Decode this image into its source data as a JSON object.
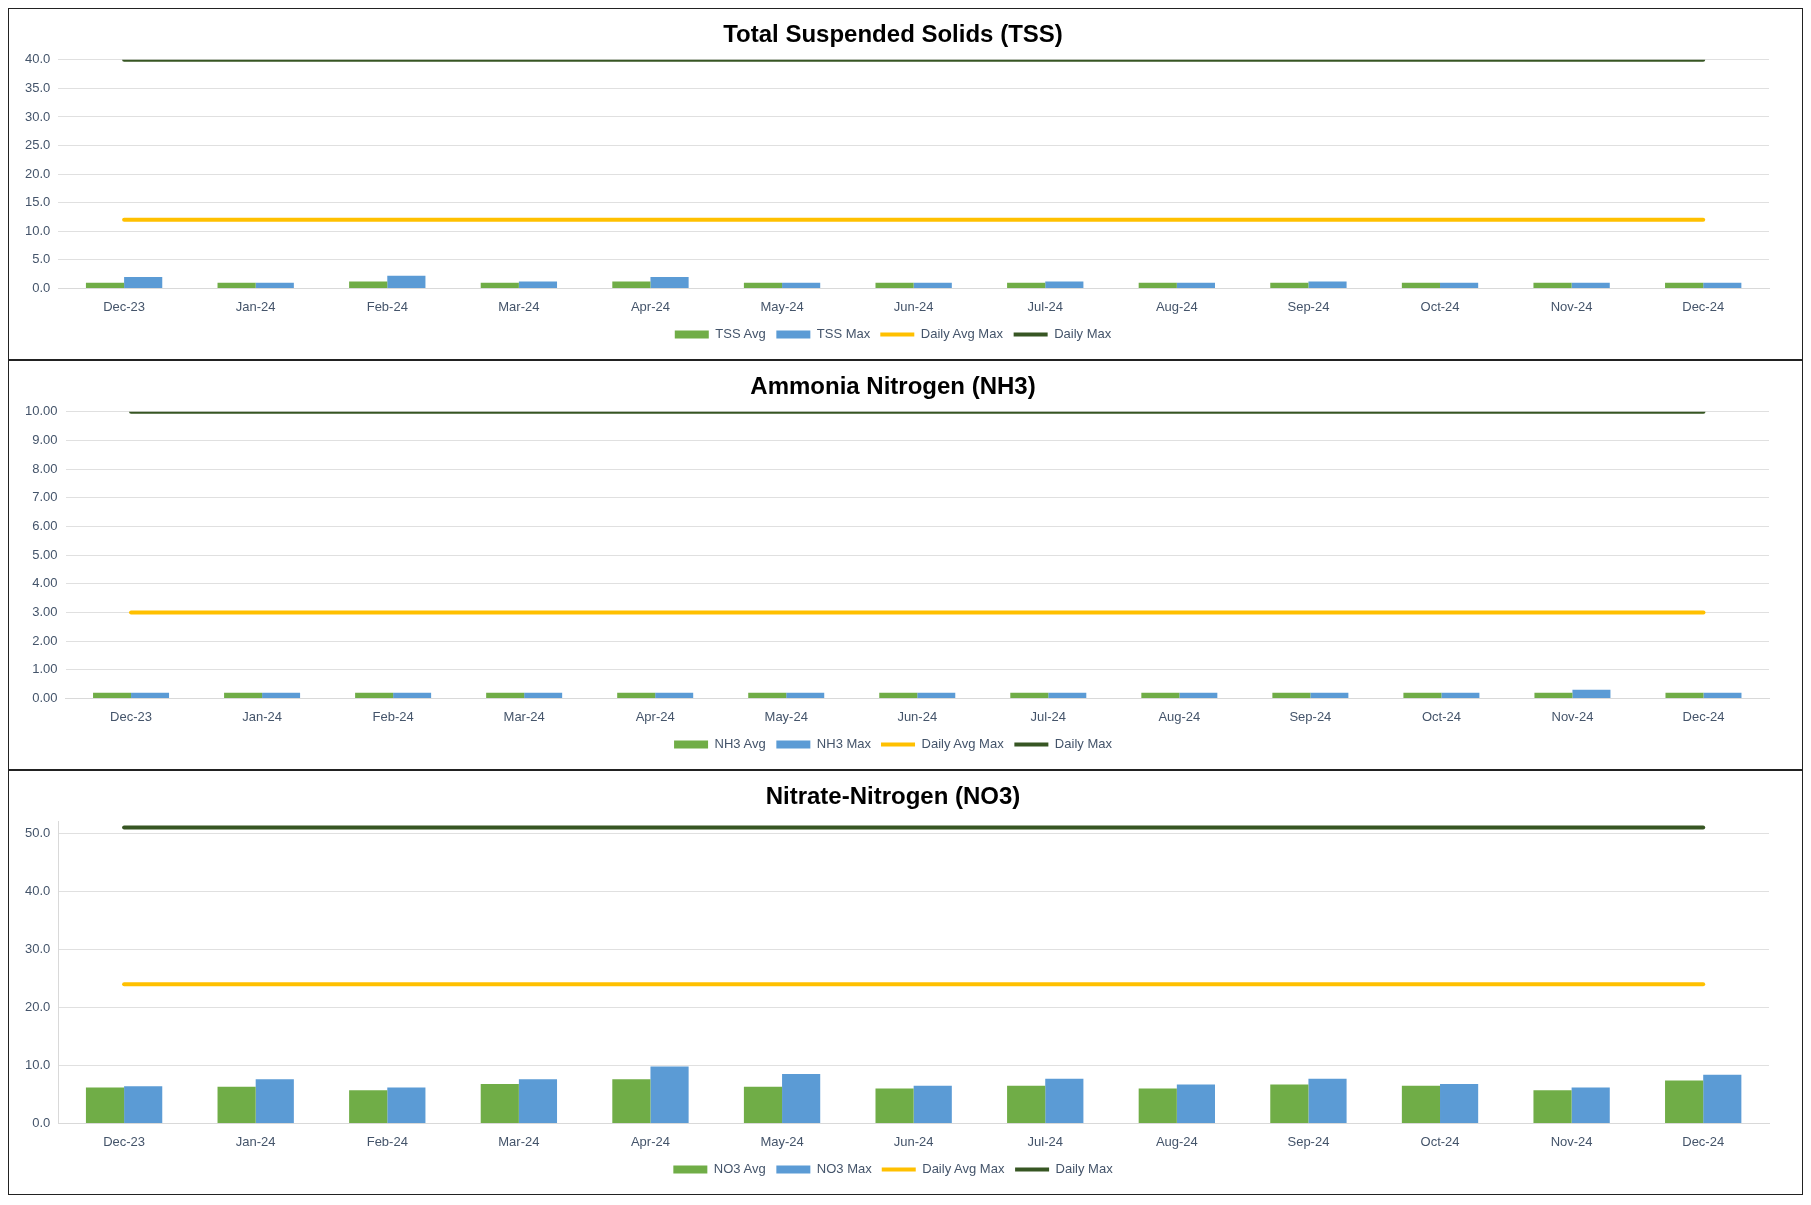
{
  "chart_data": [
    {
      "type": "bar",
      "title": "Total Suspended Solids (TSS)",
      "categories": [
        "Dec-23",
        "Jan-24",
        "Feb-24",
        "Mar-24",
        "Apr-24",
        "May-24",
        "Jun-24",
        "Jul-24",
        "Aug-24",
        "Sep-24",
        "Oct-24",
        "Nov-24",
        "Dec-24"
      ],
      "ylim": [
        0,
        40
      ],
      "yticks": [
        {
          "value": 0,
          "label": "0.0"
        },
        {
          "value": 5,
          "label": "5.0"
        },
        {
          "value": 10,
          "label": "10.0"
        },
        {
          "value": 15,
          "label": "15.0"
        },
        {
          "value": 20,
          "label": "20.0"
        },
        {
          "value": 25,
          "label": "25.0"
        },
        {
          "value": 30,
          "label": "30.0"
        },
        {
          "value": 35,
          "label": "35.0"
        },
        {
          "value": 40,
          "label": "40.0"
        }
      ],
      "grid": "y",
      "legend": "bottom",
      "series": [
        {
          "name": "TSS Avg",
          "color": "#70ad47",
          "values": [
            1.0,
            1.0,
            1.2,
            1.0,
            1.2,
            1.0,
            1.0,
            1.0,
            1.0,
            1.0,
            1.0,
            1.0,
            1.0
          ]
        },
        {
          "name": "TSS Max",
          "color": "#5b9bd5",
          "values": [
            2.0,
            1.0,
            2.2,
            1.2,
            2.0,
            1.0,
            1.0,
            1.2,
            1.0,
            1.2,
            1.0,
            1.0,
            1.0
          ]
        },
        {
          "name": "Daily Avg Max",
          "type": "line",
          "color": "#ffc000",
          "values": [
            12,
            12,
            12,
            12,
            12,
            12,
            12,
            12,
            12,
            12,
            12,
            12,
            12
          ]
        },
        {
          "name": "Daily Max",
          "type": "line",
          "color": "#375623",
          "values": [
            40,
            40,
            40,
            40,
            40,
            40,
            40,
            40,
            40,
            40,
            40,
            40,
            40
          ]
        }
      ]
    },
    {
      "type": "bar",
      "title": "Ammonia Nitrogen (NH3)",
      "categories": [
        "Dec-23",
        "Jan-24",
        "Feb-24",
        "Mar-24",
        "Apr-24",
        "May-24",
        "Jun-24",
        "Jul-24",
        "Aug-24",
        "Sep-24",
        "Oct-24",
        "Nov-24",
        "Dec-24"
      ],
      "ylim": [
        0,
        10
      ],
      "yticks": [
        {
          "value": 0,
          "label": "0.00"
        },
        {
          "value": 1,
          "label": "1.00"
        },
        {
          "value": 2,
          "label": "2.00"
        },
        {
          "value": 3,
          "label": "3.00"
        },
        {
          "value": 4,
          "label": "4.00"
        },
        {
          "value": 5,
          "label": "5.00"
        },
        {
          "value": 6,
          "label": "6.00"
        },
        {
          "value": 7,
          "label": "7.00"
        },
        {
          "value": 8,
          "label": "8.00"
        },
        {
          "value": 9,
          "label": "9.00"
        },
        {
          "value": 10,
          "label": "10.00"
        }
      ],
      "grid": "y",
      "legend": "bottom",
      "series": [
        {
          "name": "NH3 Avg",
          "color": "#70ad47",
          "values": [
            0.2,
            0.2,
            0.2,
            0.2,
            0.2,
            0.2,
            0.2,
            0.2,
            0.2,
            0.2,
            0.2,
            0.2,
            0.2
          ]
        },
        {
          "name": "NH3 Max",
          "color": "#5b9bd5",
          "values": [
            0.2,
            0.2,
            0.2,
            0.2,
            0.2,
            0.2,
            0.2,
            0.2,
            0.2,
            0.2,
            0.2,
            0.3,
            0.2
          ]
        },
        {
          "name": "Daily Avg Max",
          "type": "line",
          "color": "#ffc000",
          "values": [
            3,
            3,
            3,
            3,
            3,
            3,
            3,
            3,
            3,
            3,
            3,
            3,
            3
          ]
        },
        {
          "name": "Daily Max",
          "type": "line",
          "color": "#375623",
          "values": [
            10,
            10,
            10,
            10,
            10,
            10,
            10,
            10,
            10,
            10,
            10,
            10,
            10
          ]
        }
      ]
    },
    {
      "type": "bar",
      "title": "Nitrate-Nitrogen (NO3)",
      "categories": [
        "Dec-23",
        "Jan-24",
        "Feb-24",
        "Mar-24",
        "Apr-24",
        "May-24",
        "Jun-24",
        "Jul-24",
        "Aug-24",
        "Sep-24",
        "Oct-24",
        "Nov-24",
        "Dec-24"
      ],
      "ylim": [
        0,
        52
      ],
      "yticks": [
        {
          "value": 0,
          "label": "0.0"
        },
        {
          "value": 10,
          "label": "10.0"
        },
        {
          "value": 20,
          "label": "20.0"
        },
        {
          "value": 30,
          "label": "30.0"
        },
        {
          "value": 40,
          "label": "40.0"
        },
        {
          "value": 50,
          "label": "50.0"
        }
      ],
      "grid": "y",
      "legend": "bottom",
      "series": [
        {
          "name": "NO3 Avg",
          "color": "#70ad47",
          "values": [
            6.2,
            6.3,
            5.7,
            6.8,
            7.6,
            6.3,
            6.0,
            6.5,
            6.0,
            6.7,
            6.5,
            5.7,
            7.4
          ]
        },
        {
          "name": "NO3 Max",
          "color": "#5b9bd5",
          "values": [
            6.4,
            7.6,
            6.2,
            7.6,
            9.8,
            8.5,
            6.5,
            7.7,
            6.7,
            7.7,
            6.8,
            6.2,
            8.4
          ]
        },
        {
          "name": "Daily Avg Max",
          "type": "line",
          "color": "#ffc000",
          "values": [
            24,
            24,
            24,
            24,
            24,
            24,
            24,
            24,
            24,
            24,
            24,
            24,
            24
          ]
        },
        {
          "name": "Daily Max",
          "type": "line",
          "color": "#375623",
          "values": [
            51,
            51,
            51,
            51,
            51,
            51,
            51,
            51,
            51,
            51,
            51,
            51,
            51
          ]
        }
      ]
    }
  ]
}
